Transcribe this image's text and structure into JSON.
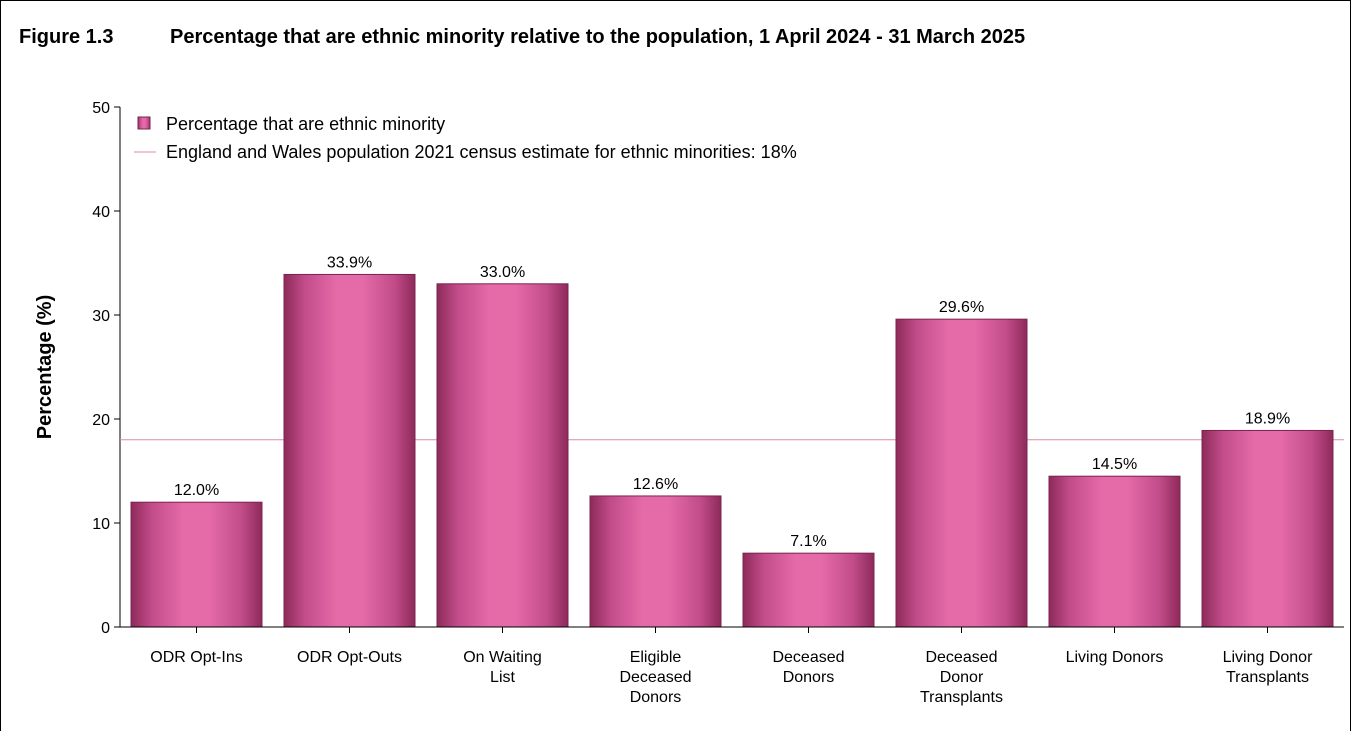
{
  "figure_number": "Figure 1.3",
  "chart_data": {
    "type": "bar",
    "title": "Percentage that are ethnic minority relative to the population, 1 April 2024 - 31 March 2025",
    "ylabel": "Percentage (%)",
    "xlabel": "",
    "ylim": [
      0,
      50
    ],
    "yticks": [
      0,
      10,
      20,
      30,
      40,
      50
    ],
    "grid": false,
    "legend_position": "top-left",
    "categories": [
      [
        "ODR Opt-Ins"
      ],
      [
        "ODR Opt-Outs"
      ],
      [
        "On Waiting",
        "List"
      ],
      [
        "Eligible",
        "Deceased",
        "Donors"
      ],
      [
        "Deceased",
        "Donors"
      ],
      [
        "Deceased",
        "Donor",
        "Transplants"
      ],
      [
        "Living Donors"
      ],
      [
        "Living Donor",
        "Transplants"
      ]
    ],
    "series": [
      {
        "name": "Percentage that are ethnic minority",
        "values": [
          12.0,
          33.9,
          33.0,
          12.6,
          7.1,
          29.6,
          14.5,
          18.9
        ],
        "data_labels": [
          "12.0%",
          "33.9%",
          "33.0%",
          "12.6%",
          "7.1%",
          "29.6%",
          "14.5%",
          "18.9%"
        ],
        "color": "#e06aa8"
      }
    ],
    "reference_line": {
      "name": "England and Wales population 2021 census estimate for ethnic minorities: 18%",
      "value": 18,
      "color": "#e08aa8"
    }
  }
}
